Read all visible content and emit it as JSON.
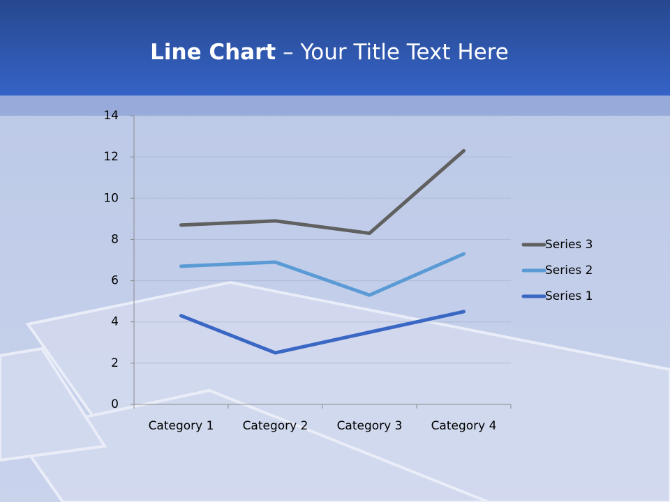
{
  "chart_data": {
    "type": "line",
    "title": [
      "Line Chart",
      "– Your Title Text Here"
    ],
    "categories": [
      "Category 1",
      "Category 2",
      "Category 3",
      "Category 4"
    ],
    "series": [
      {
        "name": "Series 1",
        "color": "#3a66c4",
        "values": [
          4.3,
          2.5,
          3.5,
          4.5
        ]
      },
      {
        "name": "Series 2",
        "color": "#5b9bd5",
        "values": [
          6.7,
          6.9,
          5.3,
          7.3
        ]
      },
      {
        "name": "Series 3",
        "color": "#606060",
        "values": [
          8.7,
          8.9,
          8.3,
          12.3
        ]
      }
    ],
    "ylim": [
      0,
      14
    ],
    "yticks": [
      0,
      2,
      4,
      6,
      8,
      10,
      12,
      14
    ],
    "grid": true,
    "legend": "right"
  }
}
